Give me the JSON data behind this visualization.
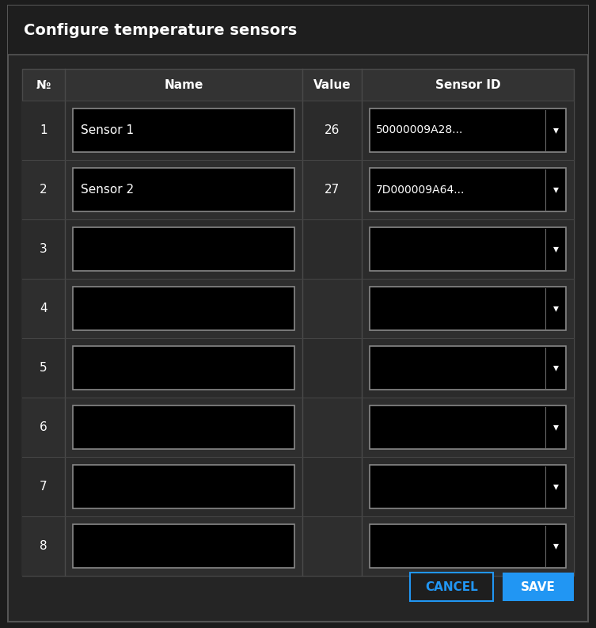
{
  "title": "Configure temperature sensors",
  "bg_outer": "#1c1c1c",
  "bg_dialog": "#252525",
  "bg_header": "#1e1e1e",
  "bg_table_row": "#2a2a2a",
  "bg_header_row": "#333333",
  "bg_cell": "#000000",
  "border_color": "#4a4a4a",
  "border_light": "#3a3a3a",
  "text_color": "#ffffff",
  "header_cols": [
    "№",
    "Name",
    "Value",
    "Sensor ID"
  ],
  "rows": [
    {
      "num": "1",
      "name": "Sensor 1",
      "value": "26",
      "sensor_id": "50000009A28..."
    },
    {
      "num": "2",
      "name": "Sensor 2",
      "value": "27",
      "sensor_id": "7D000009A64..."
    },
    {
      "num": "3",
      "name": "",
      "value": "",
      "sensor_id": ""
    },
    {
      "num": "4",
      "name": "",
      "value": "",
      "sensor_id": ""
    },
    {
      "num": "5",
      "name": "",
      "value": "",
      "sensor_id": ""
    },
    {
      "num": "6",
      "name": "",
      "value": "",
      "sensor_id": ""
    },
    {
      "num": "7",
      "name": "",
      "value": "",
      "sensor_id": ""
    },
    {
      "num": "8",
      "name": "",
      "value": "",
      "sensor_id": ""
    }
  ],
  "btn_cancel_text": "CANCEL",
  "btn_save_text": "SAVE",
  "btn_cancel_bg": "#1e1e1e",
  "btn_cancel_border": "#2196f3",
  "btn_save_bg": "#2196f3",
  "btn_text_color": "#ffffff",
  "btn_cancel_text_color": "#2196f3"
}
